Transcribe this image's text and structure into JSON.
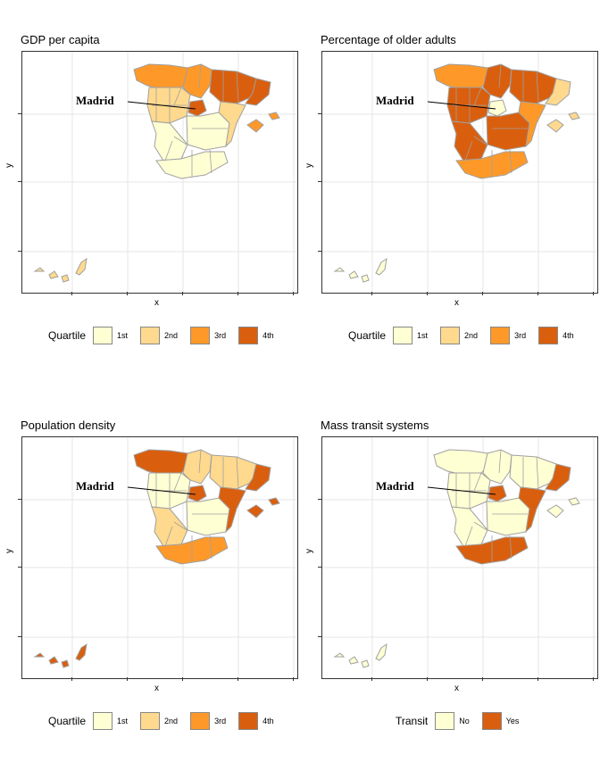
{
  "chart_data": [
    {
      "type": "choropleth-map",
      "title": "GDP per capita",
      "xlabel": "x",
      "ylabel": "y",
      "annotation": "Madrid",
      "legend": {
        "title": "Quartile",
        "entries": [
          "1st",
          "2nd",
          "3rd",
          "4th"
        ]
      },
      "region_classes": {
        "north_coast": "3rd",
        "north_center": "3rd",
        "north_east": "4th",
        "catalonia": "4th",
        "castile_north": "2nd",
        "madrid": "4th",
        "castile_south": "1st",
        "east_coast": "2nd",
        "west": "1st",
        "andalusia": "1st",
        "balearics": "3rd",
        "canaries": "2nd"
      }
    },
    {
      "type": "choropleth-map",
      "title": "Percentage of older adults",
      "xlabel": "x",
      "ylabel": "y",
      "annotation": "Madrid",
      "legend": {
        "title": "Quartile",
        "entries": [
          "1st",
          "2nd",
          "3rd",
          "4th"
        ]
      },
      "region_classes": {
        "north_coast": "3rd",
        "north_center": "4th",
        "north_east": "4th",
        "catalonia": "2nd",
        "castile_north": "4th",
        "madrid": "1st",
        "castile_south": "4th",
        "east_coast": "3rd",
        "west": "4th",
        "andalusia": "3rd",
        "balearics": "2nd",
        "canaries": "1st"
      }
    },
    {
      "type": "choropleth-map",
      "title": "Population density",
      "xlabel": "x",
      "ylabel": "y",
      "annotation": "Madrid",
      "legend": {
        "title": "Quartile",
        "entries": [
          "1st",
          "2nd",
          "3rd",
          "4th"
        ]
      },
      "region_classes": {
        "north_coast": "4th",
        "north_center": "2nd",
        "north_east": "2nd",
        "catalonia": "4th",
        "castile_north": "1st",
        "madrid": "4th",
        "castile_south": "1st",
        "east_coast": "4th",
        "west": "2nd",
        "andalusia": "3rd",
        "balearics": "4th",
        "canaries": "4th"
      }
    },
    {
      "type": "choropleth-map",
      "title": "Mass transit systems",
      "xlabel": "x",
      "ylabel": "y",
      "annotation": "Madrid",
      "legend": {
        "title": "Transit",
        "entries": [
          "No",
          "Yes"
        ]
      },
      "region_classes": {
        "north_coast": "No",
        "north_center": "No",
        "north_east": "No",
        "catalonia": "Yes",
        "castile_north": "No",
        "madrid": "Yes",
        "castile_south": "No",
        "east_coast": "Yes",
        "west": "No",
        "andalusia": "Yes",
        "balearics": "No",
        "canaries": "No"
      }
    }
  ],
  "colors": {
    "1st": "#ffffd4",
    "2nd": "#fed98e",
    "3rd": "#fe9929",
    "4th": "#d95f0e",
    "No": "#ffffd4",
    "Yes": "#d95f0e",
    "border": "#a0a0a0",
    "grid": "#e5e5e5"
  }
}
